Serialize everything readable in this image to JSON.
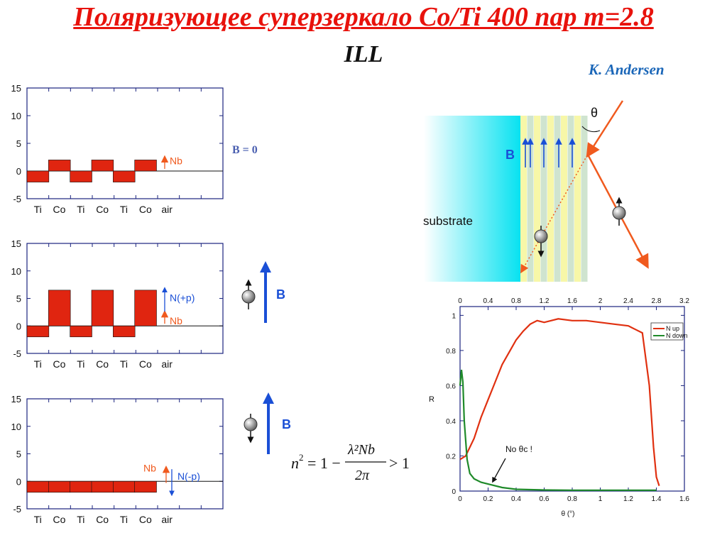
{
  "title": "Поляризующее суперзеркало Co/Ti 400 пар m=2.8",
  "subtitle": "ILL",
  "author": "K. Andersen",
  "colors": {
    "title": "#e8120c",
    "author": "#1a66b8",
    "potential": "#e02510",
    "field_arrow": "#1a4fd6",
    "n_up": "#e03010",
    "n_down": "#1f8a2a"
  },
  "potential_panels": [
    {
      "yticks": [
        "15",
        "10",
        "5",
        "0",
        "-5"
      ],
      "layers": [
        "Ti",
        "Co",
        "Ti",
        "Co",
        "Ti",
        "Co",
        "air"
      ],
      "nb_label": "Nb",
      "field_label": "B = 0",
      "chart_data": {
        "type": "bar",
        "categories": [
          "Ti",
          "Co",
          "Ti",
          "Co",
          "Ti",
          "Co",
          "air"
        ],
        "series": [
          {
            "name": "Nb",
            "values": [
              -2,
              2,
              -2,
              2,
              -2,
              2,
              0
            ]
          }
        ],
        "ylim": [
          -5,
          15
        ]
      }
    },
    {
      "yticks": [
        "15",
        "10",
        "5",
        "0",
        "-5"
      ],
      "layers": [
        "Ti",
        "Co",
        "Ti",
        "Co",
        "Ti",
        "Co",
        "air"
      ],
      "nb_label": "Nb",
      "np_label": "N(+p)",
      "field_label": "B",
      "chart_data": {
        "type": "bar",
        "categories": [
          "Ti",
          "Co",
          "Ti",
          "Co",
          "Ti",
          "Co",
          "air"
        ],
        "series": [
          {
            "name": "N(+p)",
            "values": [
              -2,
              6.5,
              -2,
              6.5,
              -2,
              6.5,
              0
            ]
          }
        ],
        "ylim": [
          -5,
          15
        ]
      }
    },
    {
      "yticks": [
        "15",
        "10",
        "5",
        "0",
        "-5"
      ],
      "layers": [
        "Ti",
        "Co",
        "Ti",
        "Co",
        "Ti",
        "Co",
        "air"
      ],
      "nb_label": "Nb",
      "np_label": "N(-p)",
      "field_label": "B",
      "chart_data": {
        "type": "bar",
        "categories": [
          "Ti",
          "Co",
          "Ti",
          "Co",
          "Ti",
          "Co",
          "air"
        ],
        "series": [
          {
            "name": "N(-p)",
            "values": [
              -2,
              -2,
              -2,
              -2,
              -2,
              -2,
              0
            ]
          }
        ],
        "ylim": [
          -5,
          15
        ]
      }
    }
  ],
  "formula": {
    "lhs": "n",
    "sup": "2",
    "eq": "= 1 −",
    "num": "λ²Nb",
    "den": "2π",
    "rhs": "> 1"
  },
  "schematic": {
    "substrate_label": "substrate",
    "field_label": "B",
    "angle_label": "θ"
  },
  "reflectivity_chart": {
    "chart_data": {
      "type": "line",
      "title": "",
      "xlabel": "θ (°)",
      "ylabel": "R",
      "xlim": [
        0,
        1.6
      ],
      "ylim": [
        0,
        1.05
      ],
      "top_xlim": [
        0,
        3.2
      ],
      "xticks": [
        "0",
        "0.2",
        "0.4",
        "0.6",
        "0.8",
        "1",
        "1.2",
        "1.4",
        "1.6"
      ],
      "top_xticks": [
        "0",
        "0.4",
        "0.8",
        "1.2",
        "1.6",
        "2",
        "2.4",
        "2.8",
        "3.2"
      ],
      "yticks": [
        "0",
        "0.2",
        "0.4",
        "0.6",
        "0.8",
        "1"
      ],
      "legend": "top-right",
      "annotation": "No θc !",
      "series": [
        {
          "name": "N up",
          "color": "#e03010",
          "x": [
            0.0,
            0.04,
            0.1,
            0.15,
            0.2,
            0.25,
            0.3,
            0.35,
            0.4,
            0.45,
            0.5,
            0.55,
            0.6,
            0.7,
            0.8,
            0.9,
            1.0,
            1.1,
            1.2,
            1.25,
            1.3,
            1.35,
            1.38,
            1.4,
            1.42
          ],
          "y": [
            0.18,
            0.2,
            0.3,
            0.42,
            0.52,
            0.62,
            0.72,
            0.79,
            0.86,
            0.91,
            0.95,
            0.97,
            0.96,
            0.98,
            0.97,
            0.97,
            0.96,
            0.95,
            0.94,
            0.92,
            0.9,
            0.6,
            0.25,
            0.08,
            0.03
          ]
        },
        {
          "name": "N down",
          "color": "#1f8a2a",
          "x": [
            0.0,
            0.01,
            0.02,
            0.03,
            0.05,
            0.07,
            0.1,
            0.15,
            0.2,
            0.3,
            0.4,
            0.5,
            0.6,
            0.8,
            1.0,
            1.2,
            1.4
          ],
          "y": [
            0.6,
            0.69,
            0.62,
            0.4,
            0.18,
            0.1,
            0.07,
            0.05,
            0.04,
            0.02,
            0.01,
            0.008,
            0.006,
            0.005,
            0.005,
            0.005,
            0.005
          ]
        }
      ]
    }
  }
}
